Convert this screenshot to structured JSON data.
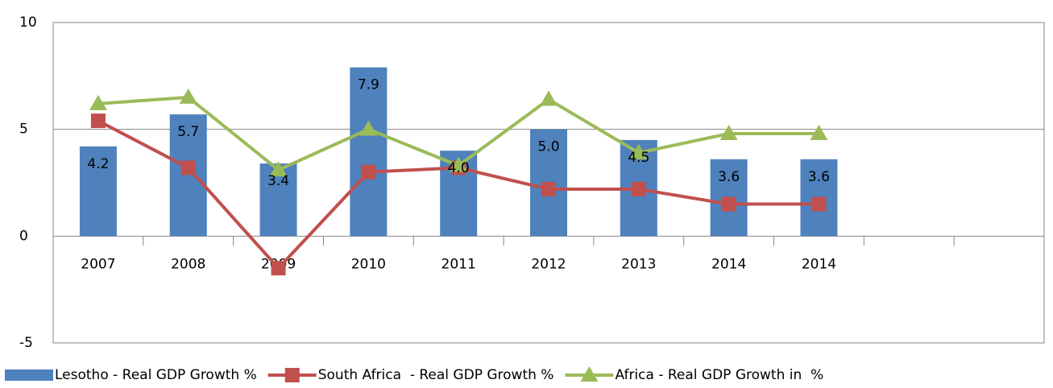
{
  "chart_data": {
    "type": "bar_line",
    "categories": [
      "2007",
      "2008",
      "2009",
      "2010",
      "2011",
      "2012",
      "2013",
      "2014",
      "2014",
      null,
      null
    ],
    "series": [
      {
        "name": "Lesotho - Real GDP Growth %",
        "type": "bar",
        "color": "#4f81bd",
        "values": [
          4.2,
          5.7,
          3.4,
          7.9,
          4.0,
          5.0,
          4.5,
          3.6,
          3.6,
          null,
          null
        ],
        "value_labels": [
          "4.2",
          "5.7",
          "3.4",
          "7.9",
          "4.0",
          "5.0",
          "4.5",
          "3.6",
          "3.6",
          null,
          null
        ]
      },
      {
        "name": "South Africa  - Real GDP Growth %",
        "type": "line",
        "marker": "square",
        "color": "#c0504d",
        "values": [
          5.4,
          3.2,
          -1.5,
          3.0,
          3.2,
          2.2,
          2.2,
          1.5,
          1.5,
          null,
          null
        ]
      },
      {
        "name": "Africa - Real GDP Growth in  %",
        "type": "line",
        "marker": "triangle",
        "color": "#9bbb59",
        "values": [
          6.2,
          6.5,
          3.1,
          5.0,
          3.3,
          6.4,
          3.9,
          4.8,
          4.8,
          null,
          null
        ]
      }
    ],
    "ylim": [
      -5,
      10
    ],
    "yticks": [
      -5,
      0,
      5,
      10
    ],
    "grid": true,
    "legend": "bottom"
  }
}
